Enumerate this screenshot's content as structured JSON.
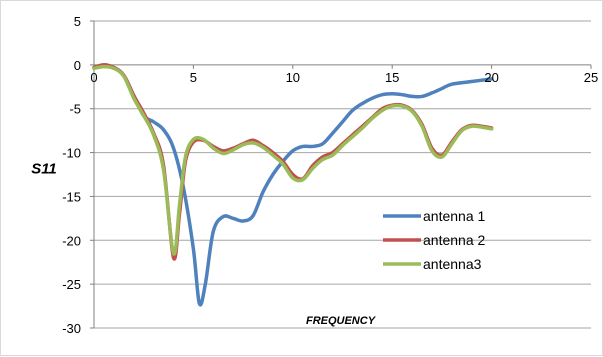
{
  "chart_data": {
    "type": "line",
    "title": "",
    "xlabel": "FREQUENCY",
    "ylabel": "S11",
    "xlim": [
      0,
      25
    ],
    "ylim": [
      -30,
      5
    ],
    "x_ticks": [
      0,
      5,
      10,
      15,
      20,
      25
    ],
    "y_ticks": [
      5,
      0,
      -5,
      -10,
      -15,
      -20,
      -25,
      -30
    ],
    "grid": "horizontal",
    "legend_position": "lower-right",
    "series": [
      {
        "name": "antenna 1",
        "color": "#4F81BD",
        "x": [
          0,
          0.5,
          1,
          1.5,
          2,
          2.5,
          3,
          3.5,
          4,
          4.5,
          5,
          5.3,
          5.6,
          6,
          6.5,
          7,
          7.5,
          8,
          8.5,
          9,
          9.5,
          10,
          10.5,
          11,
          11.5,
          12,
          12.5,
          13,
          13.5,
          14,
          14.5,
          15,
          15.5,
          16,
          16.5,
          17,
          17.5,
          18,
          19,
          20
        ],
        "y": [
          -0.3,
          0,
          -0.3,
          -1.2,
          -3.5,
          -5.8,
          -6.5,
          -7.4,
          -9.5,
          -14,
          -21,
          -27.2,
          -25,
          -19,
          -17.3,
          -17.5,
          -17.8,
          -17.2,
          -14.5,
          -12.5,
          -11,
          -9.8,
          -9.3,
          -9.3,
          -9,
          -7.8,
          -6.5,
          -5.2,
          -4.4,
          -3.8,
          -3.4,
          -3.3,
          -3.4,
          -3.6,
          -3.6,
          -3.2,
          -2.7,
          -2.2,
          -1.9,
          -1.6
        ]
      },
      {
        "name": "antenna 2",
        "color": "#C0504D",
        "x": [
          0,
          0.5,
          1,
          1.5,
          2,
          2.5,
          3,
          3.5,
          4,
          4.3,
          4.6,
          5,
          5.5,
          6,
          6.5,
          7,
          7.5,
          8,
          8.5,
          9,
          9.5,
          10,
          10.5,
          11,
          11.5,
          12,
          12.5,
          13,
          13.5,
          14,
          14.5,
          15,
          15.5,
          16,
          16.5,
          17,
          17.5,
          18,
          18.5,
          19,
          19.5,
          20
        ],
        "y": [
          -0.3,
          0,
          -0.3,
          -1.2,
          -3.5,
          -5.5,
          -7.8,
          -11.5,
          -22,
          -17,
          -11,
          -8.8,
          -8.6,
          -9.3,
          -9.8,
          -9.5,
          -9,
          -8.6,
          -9.2,
          -10,
          -11,
          -12.5,
          -13,
          -11.5,
          -10.5,
          -10,
          -9,
          -8,
          -7,
          -6,
          -5,
          -4.6,
          -4.6,
          -5.2,
          -6.8,
          -9.5,
          -10.3,
          -8.8,
          -7.4,
          -6.9,
          -7,
          -7.2
        ]
      },
      {
        "name": "antenna3",
        "color": "#9BBB59",
        "x": [
          0,
          0.5,
          1,
          1.5,
          2,
          2.5,
          3,
          3.5,
          4,
          4.3,
          4.6,
          5,
          5.5,
          6,
          6.5,
          7,
          7.5,
          8,
          8.5,
          9,
          9.5,
          10,
          10.5,
          11,
          11.5,
          12,
          12.5,
          13,
          13.5,
          14,
          14.5,
          15,
          15.5,
          16,
          16.5,
          17,
          17.5,
          18,
          18.5,
          19,
          19.5,
          20
        ],
        "y": [
          -0.4,
          -0.2,
          -0.4,
          -1.3,
          -3.8,
          -5.8,
          -8,
          -12,
          -21.5,
          -16,
          -10.5,
          -8.5,
          -8.5,
          -9.5,
          -10.1,
          -9.7,
          -9.1,
          -8.9,
          -9.4,
          -10.3,
          -11.3,
          -12.9,
          -13.1,
          -11.8,
          -10.8,
          -10.3,
          -9.2,
          -8.2,
          -7.2,
          -6.1,
          -5.2,
          -4.7,
          -4.7,
          -5.3,
          -7,
          -9.8,
          -10.5,
          -9,
          -7.5,
          -7,
          -7.1,
          -7.3
        ]
      }
    ]
  }
}
